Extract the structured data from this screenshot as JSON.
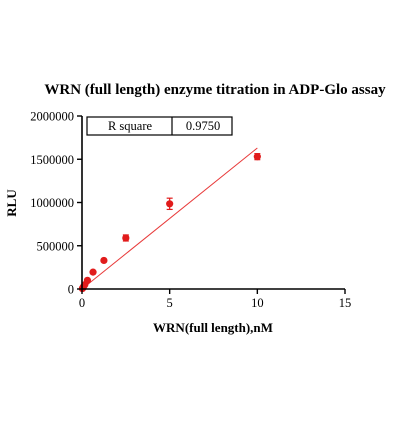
{
  "chart_data": {
    "type": "scatter",
    "title": "WRN (full length) enzyme titration in ADP-Glo assay",
    "xlabel": "WRN(full length),nM",
    "ylabel": "RLU",
    "xlim": [
      0,
      15
    ],
    "ylim": [
      0,
      2000000
    ],
    "x_ticks": [
      0,
      5,
      10,
      15
    ],
    "x_tick_labels": [
      "0",
      "5",
      "10",
      "15"
    ],
    "y_ticks": [
      0,
      500000,
      1000000,
      1500000,
      2000000
    ],
    "y_tick_labels": [
      "0",
      "500000",
      "1000000",
      "1500000",
      "2000000"
    ],
    "grid": false,
    "colors": {
      "points": "#e11b1b",
      "fit_line": "#e83a3a",
      "axis": "#000000"
    },
    "series": [
      {
        "x": [
          0.02,
          0.04,
          0.08,
          0.16,
          0.31,
          0.63,
          1.25,
          2.5,
          5,
          10
        ],
        "y": [
          5000,
          10000,
          25000,
          50000,
          100000,
          195000,
          330000,
          590000,
          985000,
          1530000
        ],
        "error": [
          0,
          0,
          0,
          0,
          0,
          0,
          0,
          35000,
          65000,
          35000
        ]
      }
    ],
    "fit_line": {
      "x": [
        0,
        10
      ],
      "y": [
        0,
        1630000
      ]
    },
    "annotation": {
      "label": "R square",
      "value": "0.9750"
    }
  }
}
